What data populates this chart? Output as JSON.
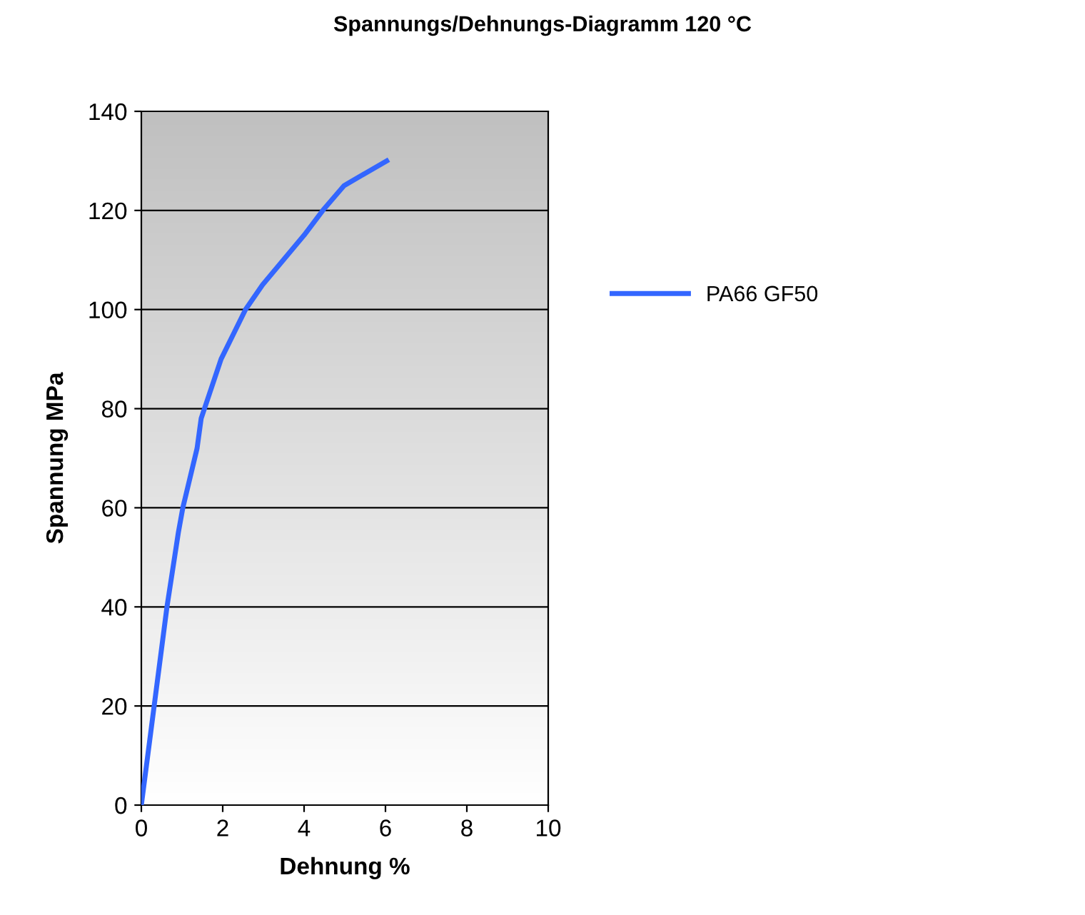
{
  "chart_data": {
    "type": "line",
    "title": "Spannungs/Dehnungs-Diagramm 120 °C",
    "xlabel": "Dehnung %",
    "ylabel": "Spannung MPa",
    "xlim": [
      0,
      10
    ],
    "xticks": [
      0,
      2,
      4,
      6,
      8,
      10
    ],
    "ylim": [
      0,
      140
    ],
    "yticks": [
      0,
      20,
      40,
      60,
      80,
      100,
      120,
      140
    ],
    "grid": "y",
    "legend": "right",
    "marker": "none",
    "line_style": "solid",
    "x": [
      0,
      0.63,
      0.91,
      1.02,
      1.37,
      1.47,
      1.96,
      2.56,
      2.98,
      4.0,
      4.46,
      4.98,
      6.03
    ],
    "series": [
      {
        "name": "PA66 GF50",
        "color": "#3366ff",
        "values": [
          0,
          40,
          55,
          60,
          72,
          78,
          90,
          100,
          105,
          115,
          120,
          125,
          130
        ]
      }
    ]
  }
}
